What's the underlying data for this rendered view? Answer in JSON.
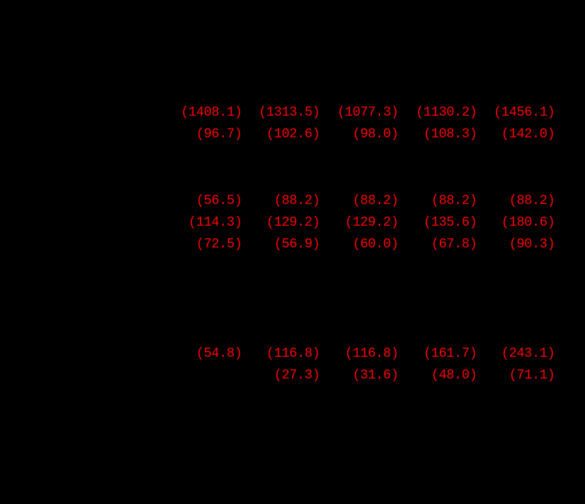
{
  "page": {
    "background_color": "#000000",
    "negative_value_color": "#ff0000"
  },
  "table": {
    "rows": [
      {
        "cells": [
          "(1408.1)",
          "(1313.5)",
          "(1077.3)",
          "(1130.2)",
          "(1456.1)"
        ]
      },
      {
        "cells": [
          "(96.7)",
          "(102.6)",
          "(98.0)",
          "(108.3)",
          "(142.0)"
        ]
      },
      {
        "cells": [
          "(56.5)",
          "(88.2)",
          "(88.2)",
          "(88.2)",
          "(88.2)"
        ]
      },
      {
        "cells": [
          "(114.3)",
          "(129.2)",
          "(129.2)",
          "(135.6)",
          "(180.6)"
        ]
      },
      {
        "cells": [
          "(72.5)",
          "(56.9)",
          "(60.0)",
          "(67.8)",
          "(90.3)"
        ]
      },
      {
        "cells": [
          "(54.8)",
          "(116.8)",
          "(116.8)",
          "(161.7)",
          "(243.1)"
        ]
      },
      {
        "cells": [
          "",
          "(27.3)",
          "(31.6)",
          "(48.0)",
          "(71.1)"
        ]
      }
    ]
  }
}
